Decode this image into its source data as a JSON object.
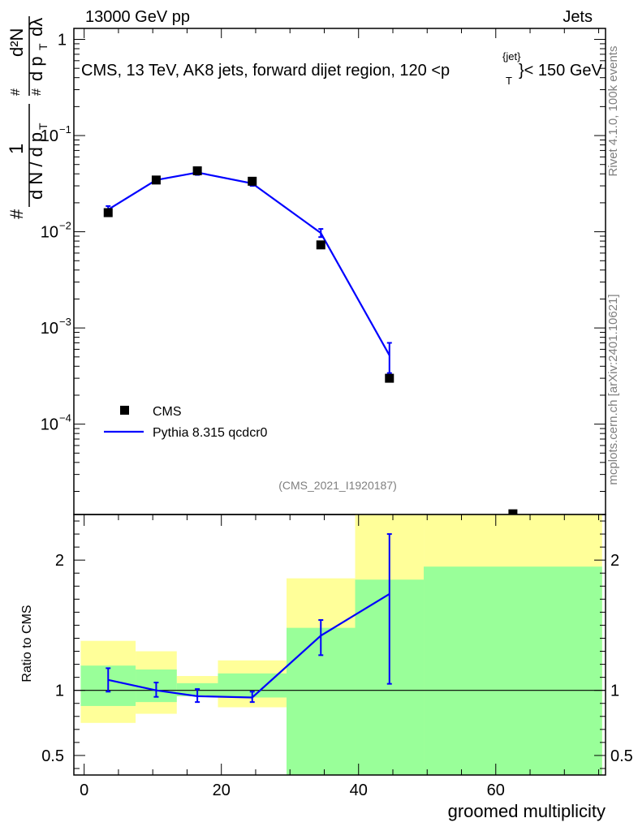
{
  "header": {
    "left": "13000 GeV pp",
    "right": "Jets",
    "title_main": "CMS, 13 TeV, AK8 jets, forward dijet region, 120 <p",
    "title_sup": "{jet}",
    "title_sub": "T",
    "title_tail": "}< 150 GeV"
  },
  "side": {
    "rivet": "Rivet 4.1.0,  100k events",
    "mcplots": "mcplots.cern.ch [arXiv:2401.10621]"
  },
  "watermark": "(CMS_2021_I1920187)",
  "chart_data": [
    {
      "type": "scatter",
      "panel": "main",
      "ylabel": "1/(dN/dpT) d²N/(dpT dλ)",
      "yscale": "log",
      "ylim": [
        1.15e-05,
        1.3
      ],
      "xlim": [
        -1.5,
        76
      ],
      "y_ticks": [
        {
          "base": "1",
          "exp": "",
          "value": 1
        },
        {
          "base": "10",
          "exp": "−1",
          "value": 0.1
        },
        {
          "base": "10",
          "exp": "−2",
          "value": 0.01
        },
        {
          "base": "10",
          "exp": "−3",
          "value": 0.001
        },
        {
          "base": "10",
          "exp": "−4",
          "value": 0.0001
        }
      ],
      "legend": {
        "position": "bottom-left",
        "entries": [
          {
            "label": "CMS",
            "marker": "square",
            "color": "#000000"
          },
          {
            "label": "Pythia 8.315 qcdcr0",
            "marker": "line",
            "color": "#0000ff"
          }
        ]
      },
      "series": [
        {
          "name": "CMS",
          "x": [
            3.5,
            10.5,
            16.5,
            24.5,
            34.5,
            44.5,
            62.5
          ],
          "y": [
            0.0158,
            0.0345,
            0.043,
            0.0335,
            0.0073,
            0.0003,
            1.17e-05
          ]
        },
        {
          "name": "Pythia 8.315 qcdcr0",
          "x": [
            3.5,
            10.5,
            16.5,
            24.5,
            34.5,
            44.5
          ],
          "y": [
            0.017,
            0.0345,
            0.0413,
            0.0318,
            0.0097,
            0.00052
          ],
          "err_lo": [
            0.0155,
            0.0325,
            0.039,
            0.03,
            0.0088,
            0.00034
          ],
          "err_hi": [
            0.0185,
            0.0365,
            0.0435,
            0.0336,
            0.0107,
            0.0007
          ]
        }
      ]
    },
    {
      "type": "area",
      "panel": "ratio",
      "ylabel": "Ratio to CMS",
      "xlabel": "groomed multiplicity",
      "ylim": [
        0.35,
        2.35
      ],
      "xlim": [
        -1.5,
        76
      ],
      "x_ticks": [
        0,
        20,
        40,
        60
      ],
      "y_ticks": [
        "0.5",
        "1",
        "2"
      ],
      "bands": [
        {
          "x0": -0.5,
          "x1": 7.5,
          "stat_lo": 0.88,
          "stat_hi": 1.19,
          "tot_lo": 0.75,
          "tot_hi": 1.38
        },
        {
          "x0": 7.5,
          "x1": 13.5,
          "stat_lo": 0.91,
          "stat_hi": 1.16,
          "tot_lo": 0.82,
          "tot_hi": 1.3
        },
        {
          "x0": 13.5,
          "x1": 19.5,
          "stat_lo": 0.955,
          "stat_hi": 1.055,
          "tot_lo": 0.955,
          "tot_hi": 1.11
        },
        {
          "x0": 19.5,
          "x1": 29.5,
          "stat_lo": 0.945,
          "stat_hi": 1.13,
          "tot_lo": 0.87,
          "tot_hi": 1.23
        },
        {
          "x0": 29.5,
          "x1": 39.5,
          "stat_lo": 0.35,
          "stat_hi": 1.48,
          "tot_lo": 0.63,
          "tot_hi": 1.86
        },
        {
          "x0": 39.5,
          "x1": 49.5,
          "stat_lo": 0.35,
          "stat_hi": 1.85,
          "tot_lo": 0.35,
          "tot_hi": 2.35
        },
        {
          "x0": 49.5,
          "x1": 75.5,
          "stat_lo": 0.35,
          "stat_hi": 1.95,
          "tot_lo": 0.35,
          "tot_hi": 2.35
        }
      ],
      "series": [
        {
          "name": "Pythia 8.315 qcdcr0 / CMS",
          "x": [
            3.5,
            10.5,
            16.5,
            24.5,
            34.5,
            44.5
          ],
          "y": [
            1.08,
            1.0,
            0.955,
            0.945,
            1.42,
            1.74
          ],
          "err_lo": [
            0.99,
            0.95,
            0.91,
            0.91,
            1.27,
            1.05
          ],
          "err_hi": [
            1.17,
            1.06,
            1.01,
            0.99,
            1.54,
            2.2
          ]
        }
      ],
      "offscale_marker": {
        "x": 62.5,
        "note": "CMS point above ratio range"
      }
    }
  ],
  "colors": {
    "data": "#000000",
    "mc": "#0000ff",
    "band_total": "#ffff99",
    "band_stat": "#99ff99",
    "watermark": "#7f7f7f"
  }
}
